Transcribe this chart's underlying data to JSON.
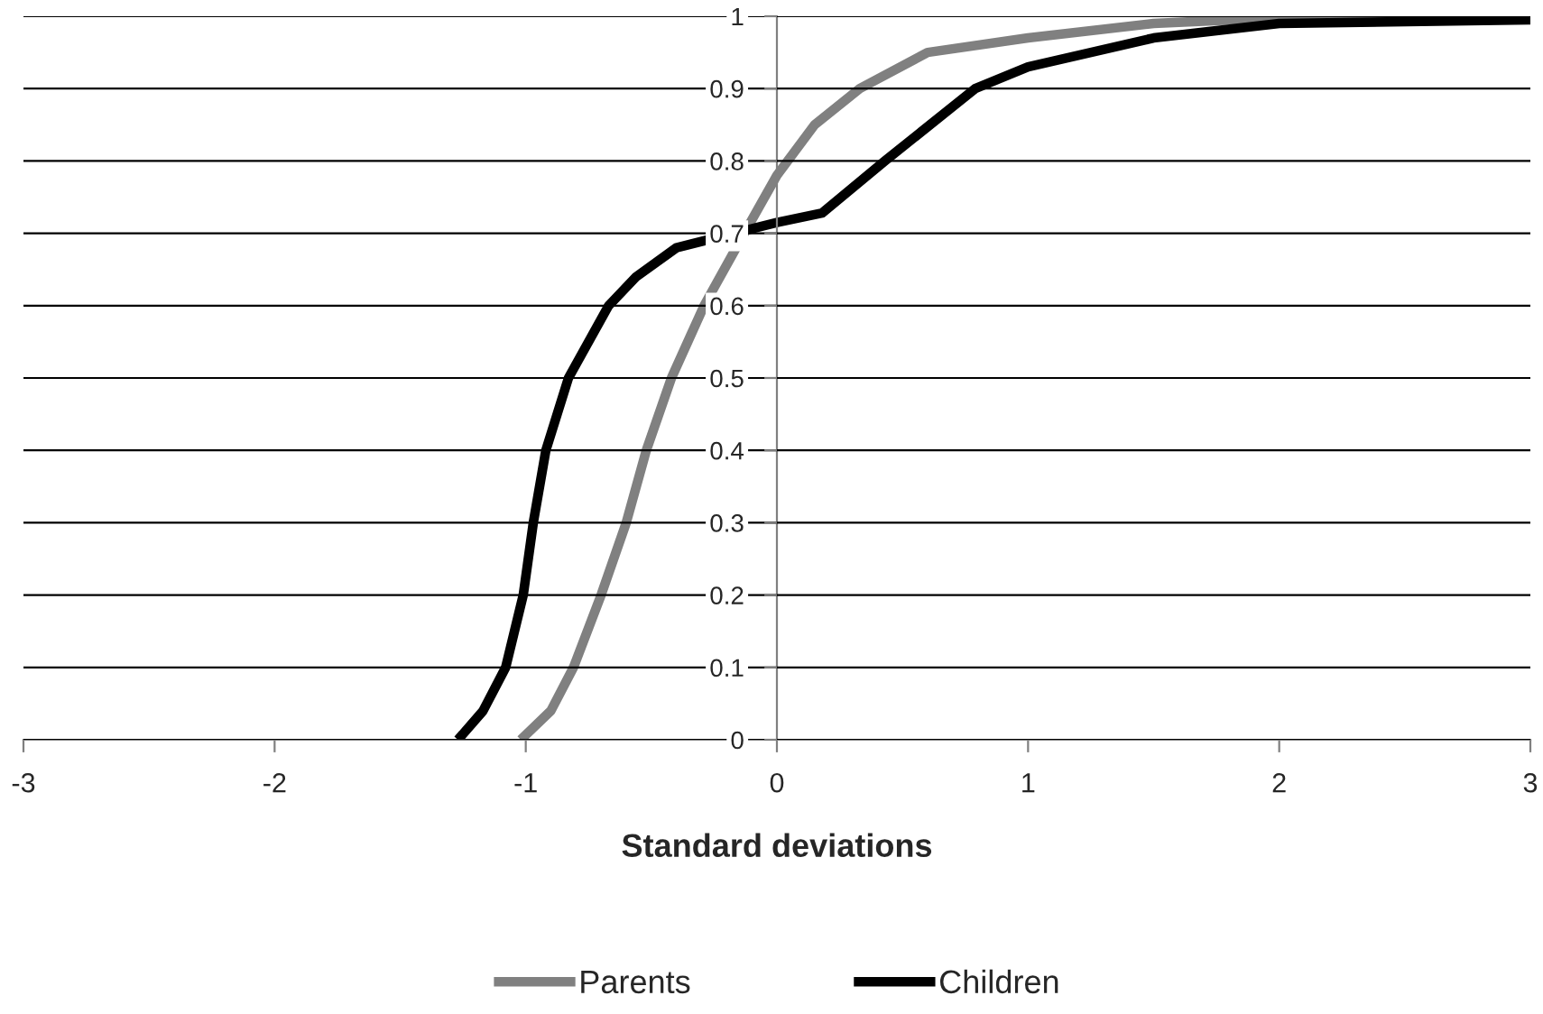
{
  "chart_data": {
    "type": "line",
    "xlabel": "Standard deviations",
    "xlim": [
      -3,
      3
    ],
    "xticks": [
      -3,
      -2,
      -1,
      0,
      1,
      2,
      3
    ],
    "ylim": [
      0,
      1
    ],
    "yticks": [
      0,
      0.1,
      0.2,
      0.3,
      0.4,
      0.5,
      0.6,
      0.7,
      0.8,
      0.9,
      1
    ],
    "grid": "y",
    "legend": "bottom",
    "marker": "none",
    "line_style": "solid",
    "series": [
      {
        "name": "Parents",
        "color": "#808080",
        "x": [
          -1.02,
          -0.9,
          -0.81,
          -0.7,
          -0.6,
          -0.52,
          -0.42,
          -0.29,
          -0.13,
          0.0,
          0.15,
          0.33,
          0.6,
          1.0,
          1.5,
          2.0,
          3.0
        ],
        "values": [
          0,
          0.04,
          0.1,
          0.2,
          0.3,
          0.4,
          0.5,
          0.6,
          0.7,
          0.78,
          0.85,
          0.9,
          0.95,
          0.97,
          0.99,
          0.998,
          1.0
        ]
      },
      {
        "name": "Children",
        "color": "#000000",
        "x": [
          -1.27,
          -1.17,
          -1.08,
          -1.01,
          -0.97,
          -0.92,
          -0.83,
          -0.67,
          -0.56,
          -0.4,
          0.0,
          0.18,
          0.43,
          0.79,
          1.0,
          1.5,
          2.0,
          3.0
        ],
        "values": [
          0,
          0.04,
          0.1,
          0.2,
          0.3,
          0.4,
          0.5,
          0.6,
          0.64,
          0.68,
          0.715,
          0.728,
          0.8,
          0.9,
          0.93,
          0.97,
          0.99,
          0.995
        ]
      }
    ]
  }
}
